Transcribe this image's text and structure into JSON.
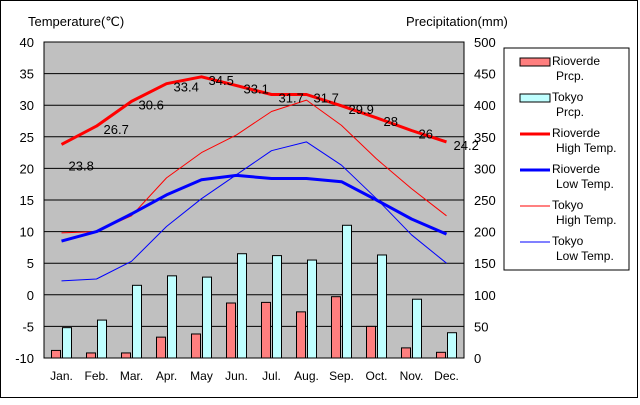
{
  "chart_data": {
    "type": "climate-chart",
    "categories": [
      "Jan.",
      "Feb.",
      "Mar.",
      "Apr.",
      "May",
      "Jun.",
      "Jul.",
      "Aug.",
      "Sep.",
      "Oct.",
      "Nov.",
      "Dec."
    ],
    "left_axis": {
      "label": "Temperature(℃)",
      "ticks": [
        40,
        35,
        30,
        25,
        20,
        15,
        10,
        5,
        0,
        -5,
        -10
      ],
      "range": [
        -10,
        40
      ]
    },
    "right_axis": {
      "label": "Precipitation(mm)",
      "ticks": [
        500,
        450,
        400,
        350,
        300,
        250,
        200,
        150,
        100,
        50,
        0
      ],
      "range": [
        0,
        500
      ]
    },
    "series": [
      {
        "name": "Rioverde Prcp.",
        "kind": "bar",
        "axis": "right",
        "color": "#ff7f7f",
        "values": [
          12,
          8,
          8,
          33,
          38,
          87,
          88,
          73,
          97,
          50,
          16,
          9
        ]
      },
      {
        "name": "Tokyo Prcp.",
        "kind": "bar",
        "axis": "right",
        "color": "#bfffff",
        "values": [
          48,
          60,
          115,
          130,
          128,
          165,
          162,
          155,
          210,
          163,
          93,
          40
        ]
      },
      {
        "name": "Rioverde High Temp.",
        "kind": "line",
        "axis": "left",
        "color": "#ff0000",
        "width": 3,
        "values": [
          23.8,
          26.7,
          30.6,
          33.4,
          34.5,
          33.1,
          31.7,
          31.7,
          29.9,
          28,
          26,
          24.2
        ]
      },
      {
        "name": "Rioverde Low Temp.",
        "kind": "line",
        "axis": "left",
        "color": "#0000ff",
        "width": 3,
        "values": [
          8.5,
          10,
          12.8,
          15.8,
          18.2,
          18.9,
          18.4,
          18.4,
          17.9,
          15,
          12,
          9.6
        ]
      },
      {
        "name": "Tokyo High Temp.",
        "kind": "line",
        "axis": "left",
        "color": "#ff0000",
        "width": 1,
        "values": [
          9.8,
          10,
          12.5,
          18.5,
          22.5,
          25.3,
          29,
          30.8,
          26.8,
          21.5,
          16.8,
          12.5
        ]
      },
      {
        "name": "Tokyo Low Temp.",
        "kind": "line",
        "axis": "left",
        "color": "#0000ff",
        "width": 1,
        "values": [
          2.2,
          2.5,
          5.3,
          10.8,
          15.2,
          19,
          22.8,
          24.2,
          20.5,
          15.2,
          9.5,
          5
        ]
      }
    ],
    "data_labels": [
      "23.8",
      "26.7",
      "30.6",
      "33.4",
      "34.5",
      "33.1",
      "31.7",
      "31.7",
      "29.9",
      "28",
      "26",
      "24.2"
    ],
    "legend": [
      {
        "line1": "Rioverde",
        "line2": "Prcp.",
        "symbol": "bar",
        "color": "#ff7f7f"
      },
      {
        "line1": "Tokyo",
        "line2": "Prcp.",
        "symbol": "bar",
        "color": "#bfffff"
      },
      {
        "line1": "Rioverde",
        "line2": "High Temp.",
        "symbol": "line",
        "color": "#ff0000",
        "width": 3
      },
      {
        "line1": "Rioverde",
        "line2": "Low Temp.",
        "symbol": "line",
        "color": "#0000ff",
        "width": 3
      },
      {
        "line1": "Tokyo",
        "line2": "High Temp.",
        "symbol": "line",
        "color": "#ff0000",
        "width": 1
      },
      {
        "line1": "Tokyo",
        "line2": "Low Temp.",
        "symbol": "line",
        "color": "#0000ff",
        "width": 1
      }
    ],
    "legend_position": "right",
    "plot_background": "#c0c0c0",
    "grid": true
  }
}
